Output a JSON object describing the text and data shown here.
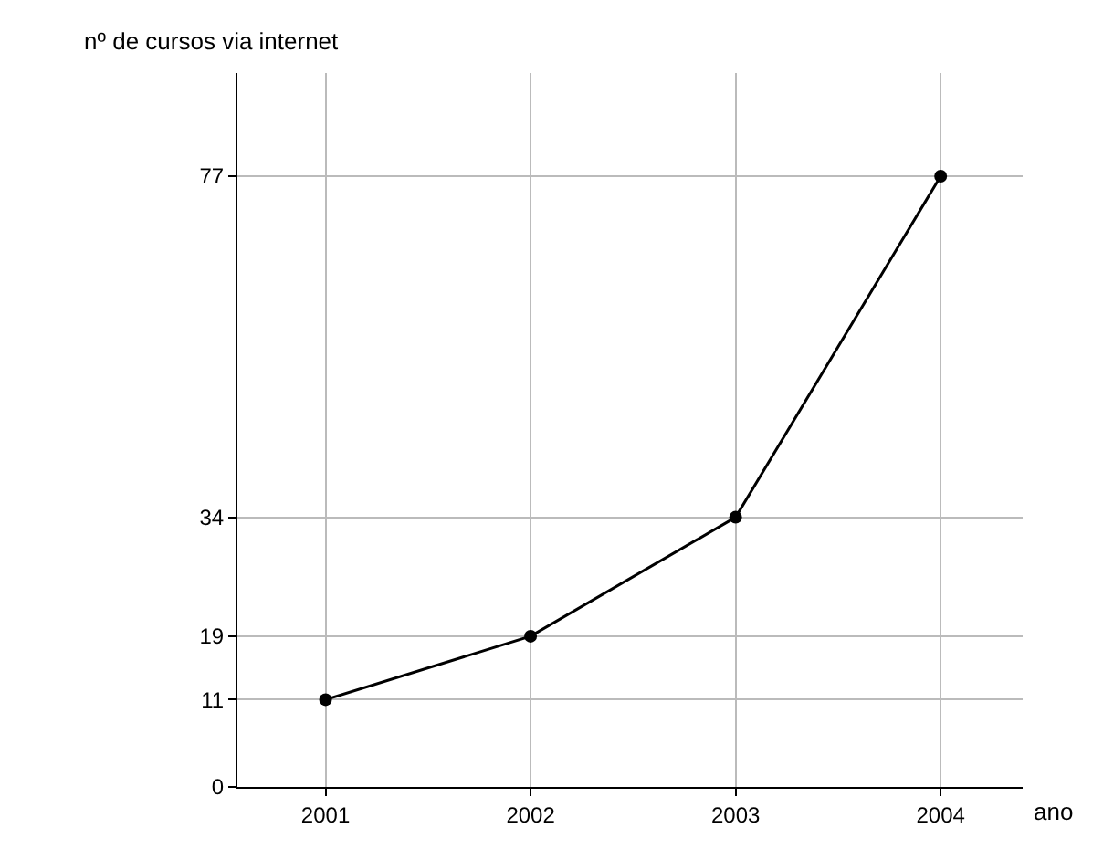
{
  "chart_data": {
    "type": "line",
    "xlabel": "ano",
    "ylabel": "nº de cursos via internet",
    "x": [
      2001,
      2002,
      2003,
      2004
    ],
    "values": [
      11,
      19,
      34,
      77
    ],
    "color": "#000000",
    "xlim": [
      2000.57,
      2004.4
    ],
    "xticks": [
      2001,
      2002,
      2003,
      2004
    ],
    "ylim": [
      0,
      90
    ],
    "yticks": [
      0,
      11,
      19,
      34,
      77
    ],
    "marker": "circle",
    "line_style": "solid",
    "grid": true,
    "legend": false
  }
}
